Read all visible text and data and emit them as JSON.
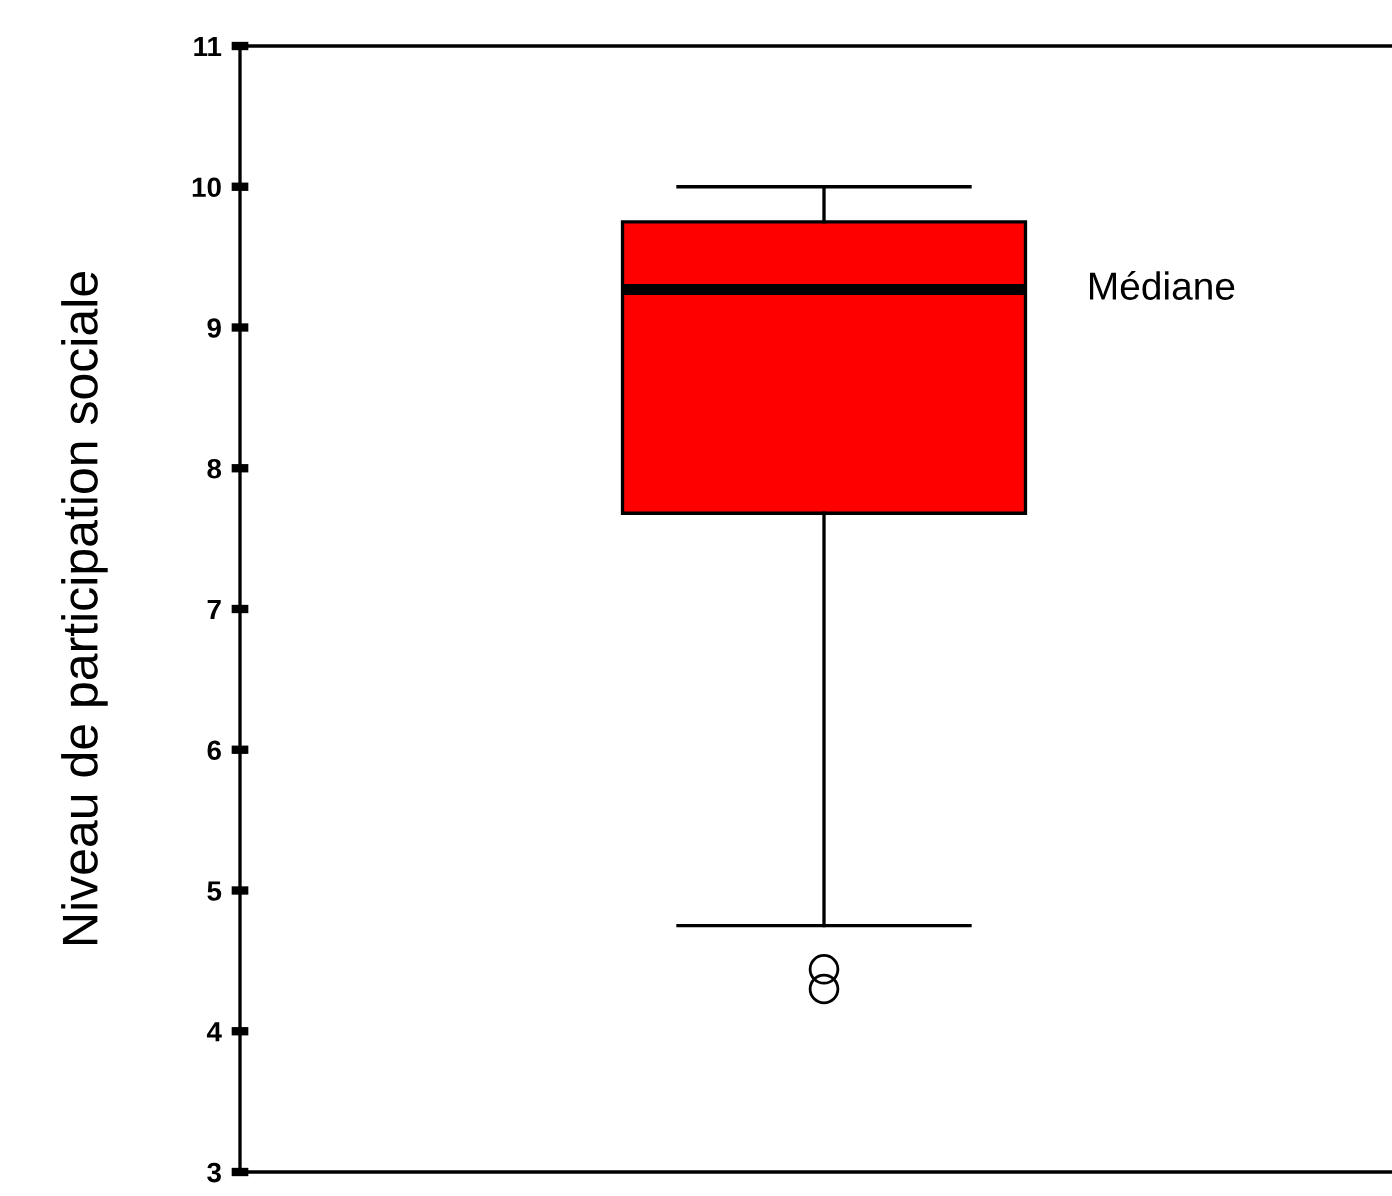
{
  "chart_data": {
    "type": "box",
    "ylabel": "Niveau de participation sociale",
    "categories": [
      null
    ],
    "color": "#ff0000",
    "boxes": [
      {
        "low": 4.75,
        "q1": 7.68,
        "median": 9.27,
        "q3": 9.75,
        "high": 10,
        "outliers": [
          4.44,
          4.3
        ]
      }
    ],
    "ylim": [
      3,
      11
    ],
    "yticks": [
      3,
      4,
      5,
      6,
      7,
      8,
      9,
      10,
      11
    ],
    "tick_labels": "y",
    "grid": false,
    "legend": false,
    "annotations": [
      "Médiane"
    ]
  }
}
